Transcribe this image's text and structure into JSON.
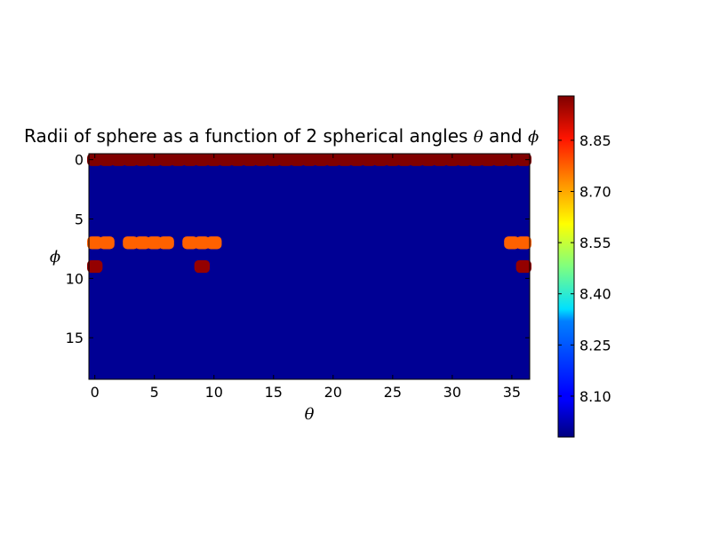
{
  "chart_data": {
    "type": "heatmap",
    "title_prefix": "Radii of sphere as a function of 2 spherical angles ",
    "title_theta": "θ",
    "title_mid": " and ",
    "title_phi": "ϕ",
    "xlabel": "θ",
    "ylabel": "ϕ",
    "x_ticks": [
      0,
      5,
      10,
      15,
      20,
      25,
      30,
      35
    ],
    "y_ticks": [
      0,
      5,
      10,
      15
    ],
    "xlim": [
      -0.5,
      36.5
    ],
    "ylim": [
      18.5,
      -0.5
    ],
    "grid_shape": [
      19,
      37
    ],
    "base_value": 8.0,
    "hot_cells": [
      {
        "row": 0,
        "col_start": 0,
        "col_end": 36,
        "value": 8.98
      },
      {
        "row": 7,
        "col_start": 0,
        "col_end": 1,
        "value": 8.76
      },
      {
        "row": 7,
        "col_start": 3,
        "col_end": 6,
        "value": 8.76
      },
      {
        "row": 7,
        "col_start": 8,
        "col_end": 10,
        "value": 8.76
      },
      {
        "row": 7,
        "col_start": 35,
        "col_end": 36,
        "value": 8.76
      },
      {
        "row": 9,
        "col_start": 0,
        "col_end": 0,
        "value": 8.96
      },
      {
        "row": 9,
        "col_start": 9,
        "col_end": 9,
        "value": 8.96
      },
      {
        "row": 9,
        "col_start": 36,
        "col_end": 36,
        "value": 8.96
      }
    ],
    "colorbar": {
      "min": 7.98,
      "max": 8.98,
      "ticks": [
        "8.10",
        "8.25",
        "8.40",
        "8.55",
        "8.70",
        "8.85"
      ],
      "colormap": "jet"
    }
  }
}
